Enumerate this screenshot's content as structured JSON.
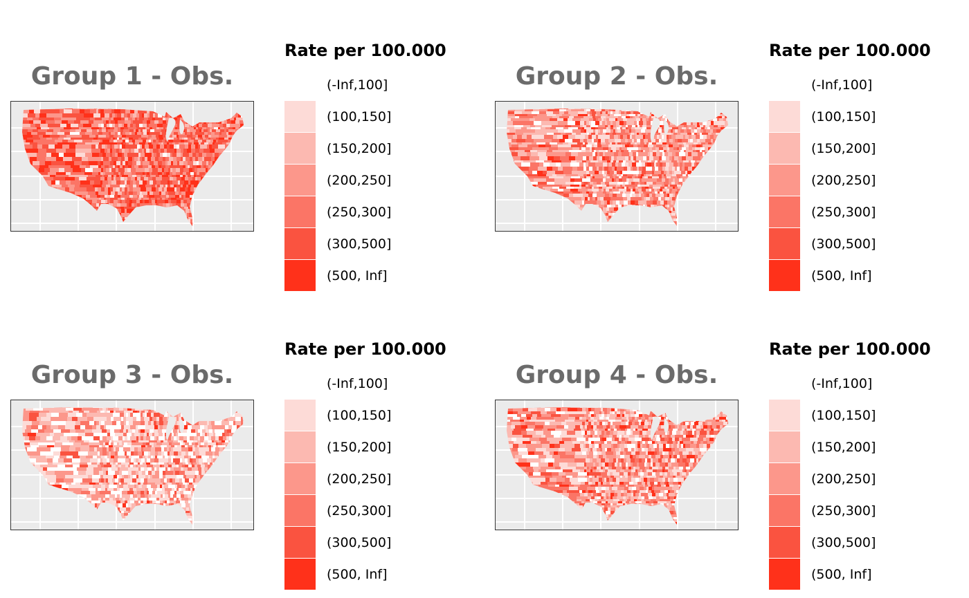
{
  "legend": {
    "title": "Rate per 100.000",
    "classes": [
      {
        "label": "(-Inf,100]",
        "color": "#ffffff"
      },
      {
        "label": "(100,150]",
        "color": "#fddbd7"
      },
      {
        "label": "(150,200]",
        "color": "#fcb9b1"
      },
      {
        "label": "(200,250]",
        "color": "#fc978b"
      },
      {
        "label": "(250,300]",
        "color": "#fb7566"
      },
      {
        "label": "(300,500]",
        "color": "#fa5340"
      },
      {
        "label": "(500, Inf]",
        "color": "#ff311a"
      }
    ]
  },
  "panels": [
    {
      "title": "Group 1 - Obs.",
      "class_weights": [
        0.02,
        0.05,
        0.1,
        0.18,
        0.25,
        0.25,
        0.15
      ]
    },
    {
      "title": "Group 2 - Obs.",
      "class_weights": [
        0.1,
        0.15,
        0.2,
        0.22,
        0.18,
        0.1,
        0.05
      ]
    },
    {
      "title": "Group 3 - Obs.",
      "class_weights": [
        0.2,
        0.22,
        0.22,
        0.18,
        0.1,
        0.06,
        0.02
      ]
    },
    {
      "title": "Group 4 - Obs.",
      "class_weights": [
        0.1,
        0.15,
        0.2,
        0.22,
        0.18,
        0.1,
        0.05
      ]
    }
  ]
}
